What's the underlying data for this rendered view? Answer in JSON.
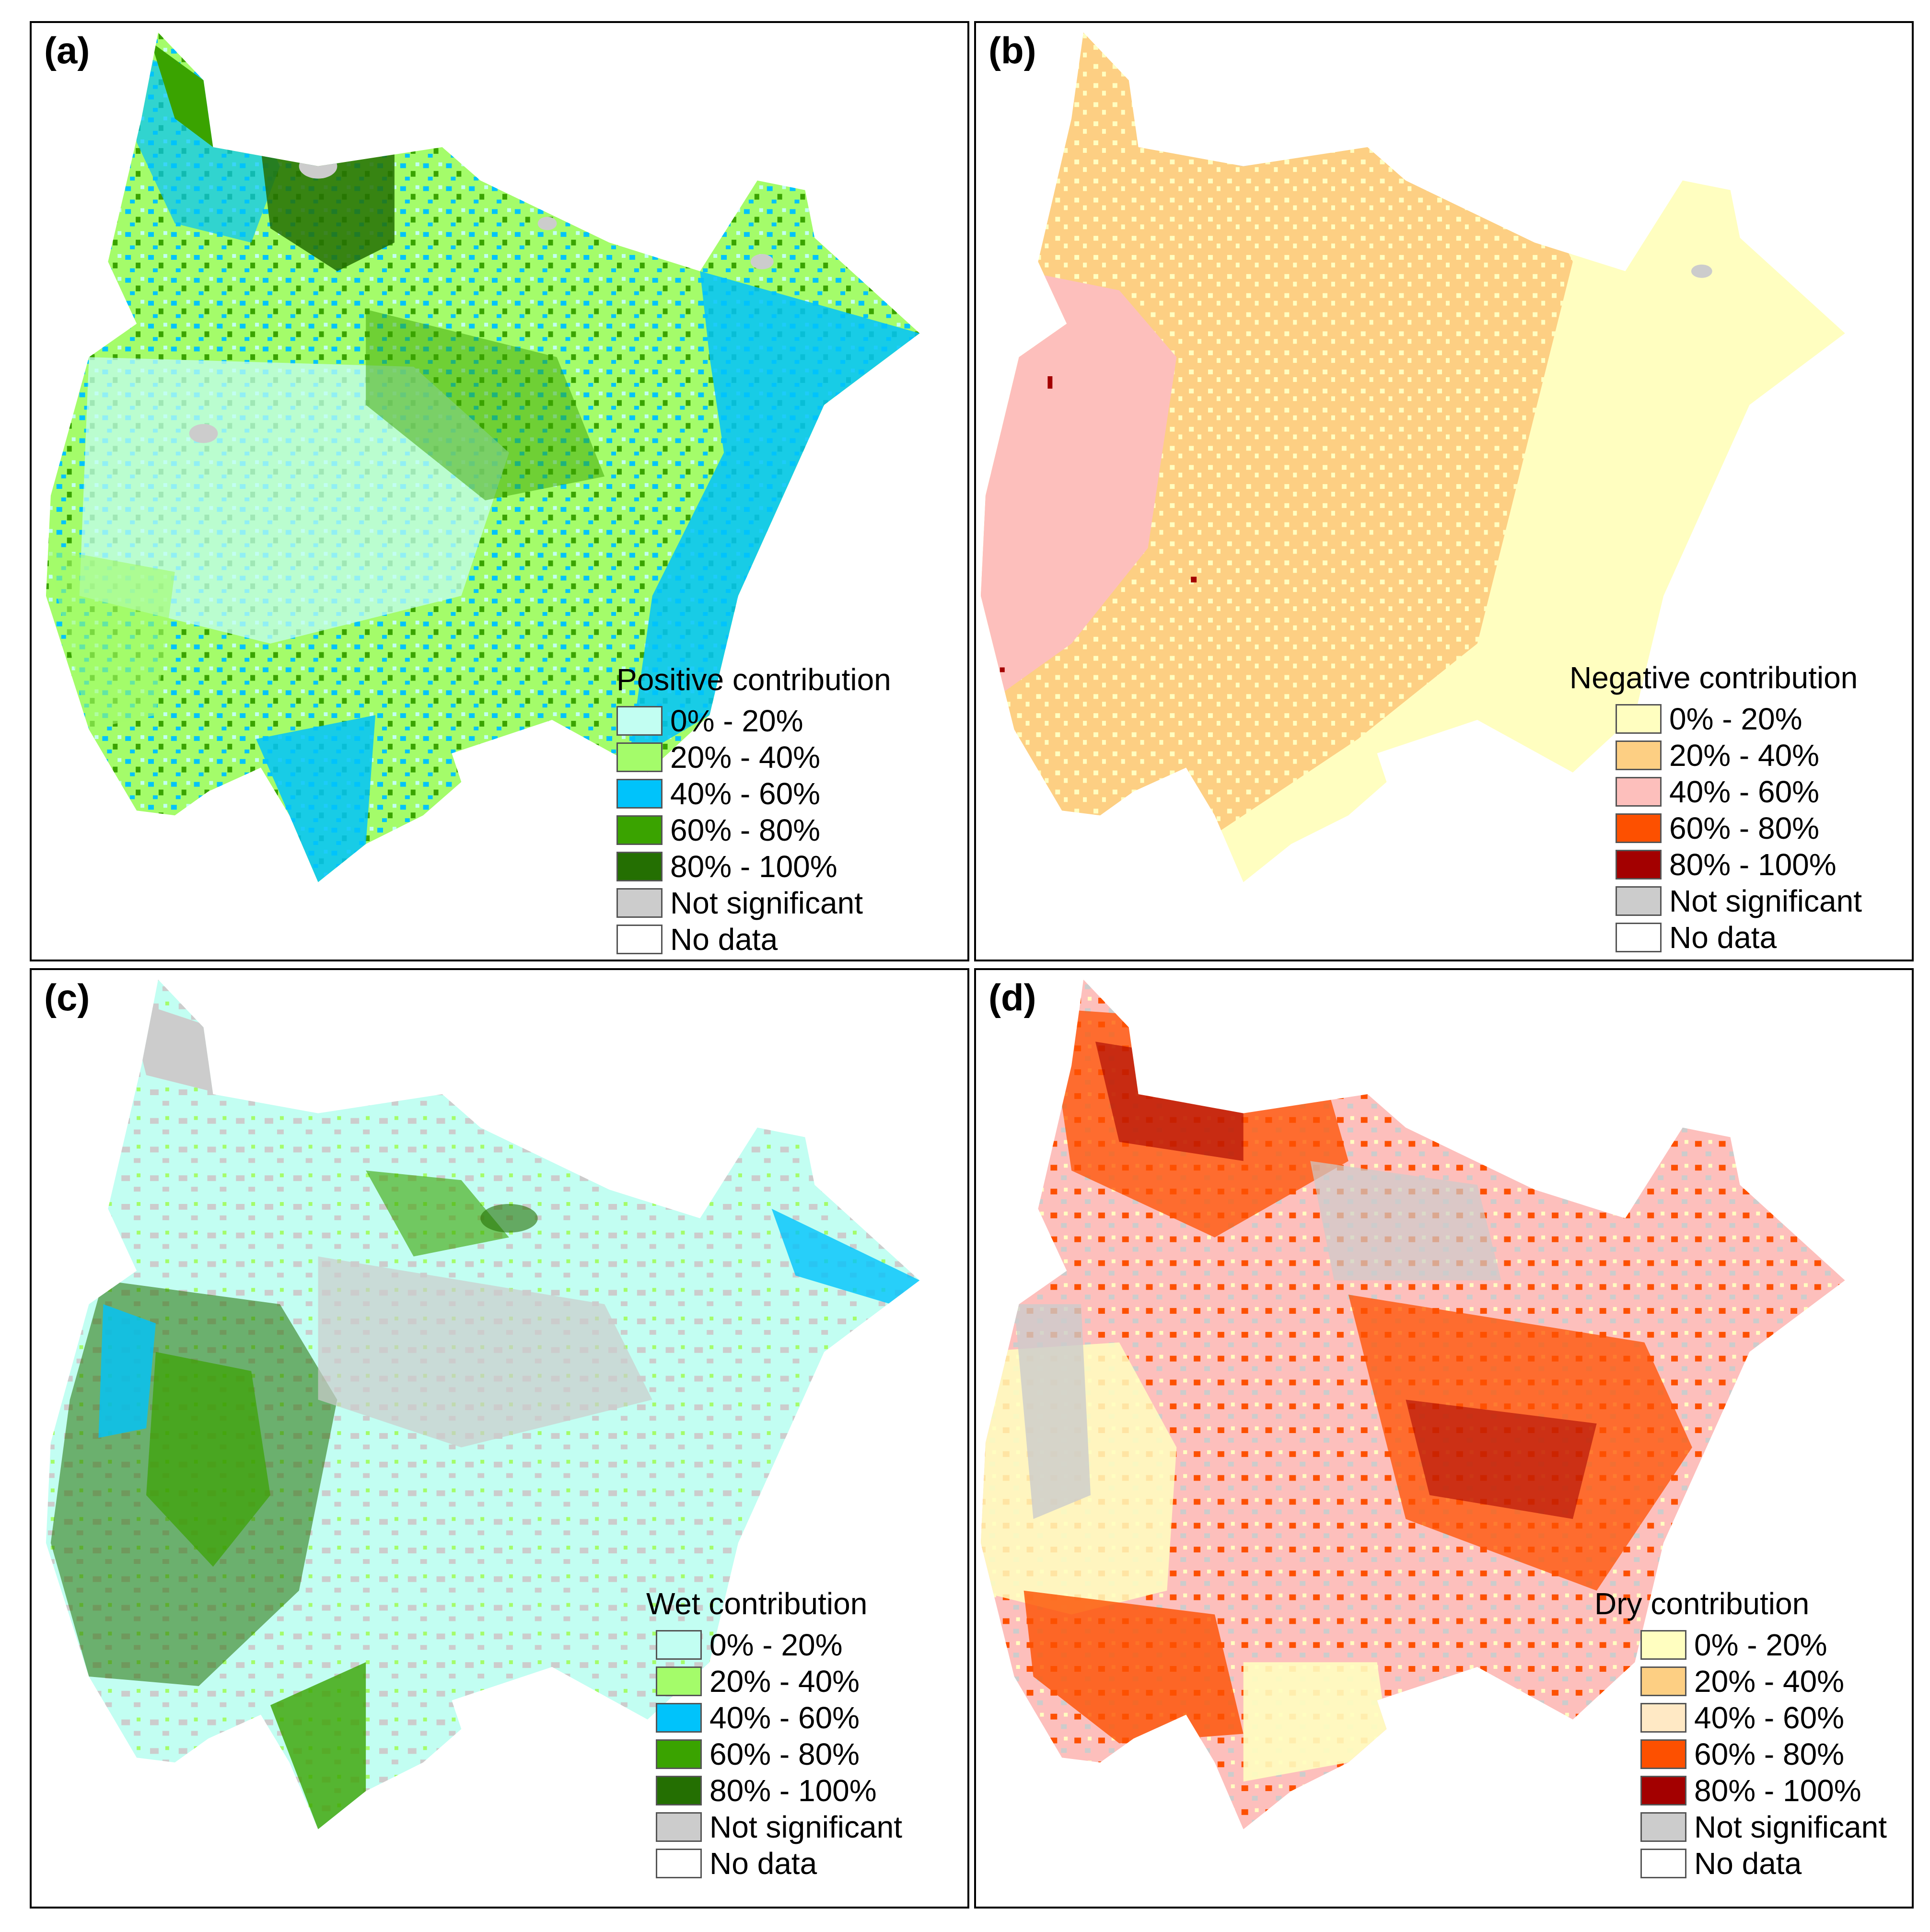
{
  "panels": [
    {
      "label": "(a)",
      "legend_title": "Positive contribution",
      "legend": [
        {
          "text": "0% - 20%",
          "color": "#c2fef2"
        },
        {
          "text": "20% - 40%",
          "color": "#a4fc6a"
        },
        {
          "text": "40% - 60%",
          "color": "#00c3fb"
        },
        {
          "text": "60% - 80%",
          "color": "#3aa300"
        },
        {
          "text": "80% - 100%",
          "color": "#246f02"
        },
        {
          "text": "Not significant",
          "color": "#cccccc"
        },
        {
          "text": "No data",
          "color": "#ffffff"
        }
      ]
    },
    {
      "label": "(b)",
      "legend_title": "Negative contribution",
      "legend": [
        {
          "text": "0% - 20%",
          "color": "#fffec0"
        },
        {
          "text": "20% - 40%",
          "color": "#fdcf83"
        },
        {
          "text": "40% - 60%",
          "color": "#fdbfbc"
        },
        {
          "text": "60% - 80%",
          "color": "#fd5000"
        },
        {
          "text": "80% - 100%",
          "color": "#a30000"
        },
        {
          "text": "Not significant",
          "color": "#cccccc"
        },
        {
          "text": "No data",
          "color": "#ffffff"
        }
      ]
    },
    {
      "label": "(c)",
      "legend_title": "Wet contribution",
      "legend": [
        {
          "text": "0% - 20%",
          "color": "#c2fef2"
        },
        {
          "text": "20% - 40%",
          "color": "#a4fc6a"
        },
        {
          "text": "40% - 60%",
          "color": "#00c3fb"
        },
        {
          "text": "60% - 80%",
          "color": "#3aa300"
        },
        {
          "text": "80% - 100%",
          "color": "#246f02"
        },
        {
          "text": "Not significant",
          "color": "#cccccc"
        },
        {
          "text": "No data",
          "color": "#ffffff"
        }
      ]
    },
    {
      "label": "(d)",
      "legend_title": "Dry contribution",
      "legend": [
        {
          "text": "0% - 20%",
          "color": "#fffec0"
        },
        {
          "text": "20% - 40%",
          "color": "#fdcf83"
        },
        {
          "text": "40% - 60%",
          "color": "#ffe9c5"
        },
        {
          "text": "60% - 80%",
          "color": "#fd5000"
        },
        {
          "text": "80% - 100%",
          "color": "#a30000"
        },
        {
          "text": "Not significant",
          "color": "#cccccc"
        },
        {
          "text": "No data",
          "color": "#ffffff"
        }
      ]
    }
  ]
}
